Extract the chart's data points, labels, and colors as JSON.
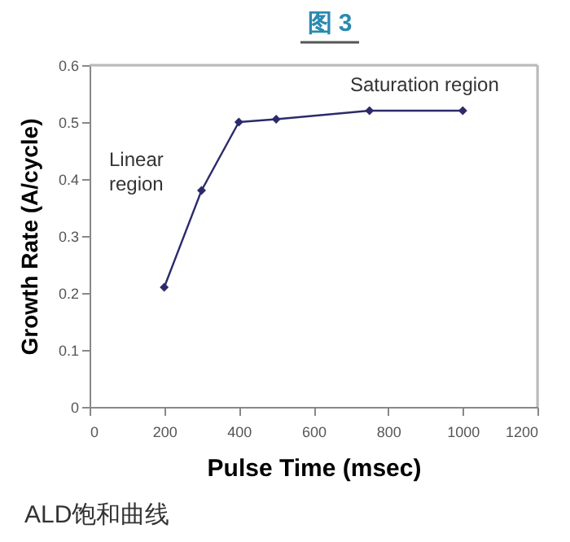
{
  "chart_data": {
    "type": "line",
    "title": "图 3",
    "xlabel": "Pulse Time (msec)",
    "ylabel": "Growth Rate (A/cycle)",
    "x": [
      200,
      300,
      400,
      500,
      750,
      1000
    ],
    "series": [
      {
        "color": "#2b2b6b",
        "values": [
          0.21,
          0.38,
          0.5,
          0.505,
          0.52,
          0.52
        ]
      }
    ],
    "xlim": [
      0,
      1200
    ],
    "xticks": [
      0,
      200,
      400,
      600,
      800,
      1000,
      1200
    ],
    "ylim": [
      0,
      0.6
    ],
    "yticks": [
      0,
      0.1,
      0.2,
      0.3,
      0.4,
      0.5,
      0.6
    ],
    "marker": "diamond",
    "line_style": "solid",
    "grid": false,
    "annotations": [
      "Linear\nregion",
      "Saturation region",
      "ALD饱和曲线"
    ]
  }
}
